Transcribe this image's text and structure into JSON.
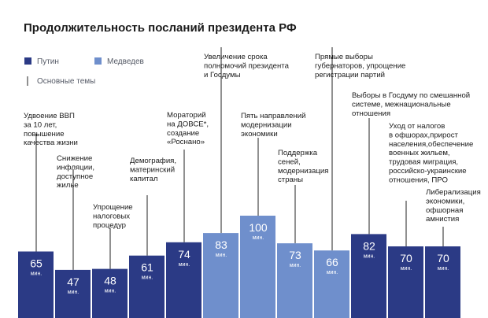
{
  "chart_data": {
    "type": "bar",
    "title": "Продолжительность посланий президента РФ",
    "unit_label": "мин.",
    "legend": [
      {
        "name": "Путин",
        "color": "#2b3a85"
      },
      {
        "name": "Медведев",
        "color": "#6f8fcc"
      },
      {
        "name": "Основные темы",
        "marker": "line"
      }
    ],
    "colors": {
      "putin": "#2b3a85",
      "medvedev": "#6f8fcc",
      "line": "#222222"
    },
    "bars": [
      {
        "value": 65,
        "president": "putin",
        "topic": [
          "Удвоение ВВП",
          "за 10 лет,",
          "повышение",
          "качества жизни"
        ]
      },
      {
        "value": 47,
        "president": "putin",
        "topic": [
          "Снижение",
          "инфляции,",
          "доступное",
          "жилье"
        ]
      },
      {
        "value": 48,
        "president": "putin",
        "topic": [
          "Упрощение",
          "налоговых",
          "процедур"
        ]
      },
      {
        "value": 61,
        "president": "putin",
        "topic": [
          "Демография,",
          "материнский",
          "капитал"
        ]
      },
      {
        "value": 74,
        "president": "putin",
        "topic": [
          "Мораторий",
          "на ДОВСЕ*,",
          "создание",
          "«Роснано»"
        ]
      },
      {
        "value": 83,
        "president": "medvedev",
        "topic": [
          "Увеличение срока",
          "полномочий президента",
          "и Госдумы"
        ]
      },
      {
        "value": 100,
        "president": "medvedev",
        "topic": [
          "Пять направлений",
          "модернизации",
          "экономики"
        ]
      },
      {
        "value": 73,
        "president": "medvedev",
        "topic": [
          "Поддержка",
          "сеней,",
          "модернизация",
          "страны"
        ]
      },
      {
        "value": 66,
        "president": "medvedev",
        "topic": [
          "Прямые выборы",
          "губернаторов, упрощение",
          "регистрации партий"
        ]
      },
      {
        "value": 82,
        "president": "putin",
        "topic": [
          "Выборы в Госдуму по смешанной",
          "системе, межнациональные",
          "отношения"
        ]
      },
      {
        "value": 70,
        "president": "putin",
        "topic": [
          "Уход от налогов",
          "в офшорах,прирост",
          "населения,обеспечение",
          "военных жильем,",
          "трудовая миграция,",
          "российско-украинские",
          "отношения, ПРО"
        ]
      },
      {
        "value": 70,
        "president": "putin",
        "topic": [
          "Либерализация",
          "экономики,",
          "офшорная",
          "амнистия"
        ]
      }
    ]
  }
}
